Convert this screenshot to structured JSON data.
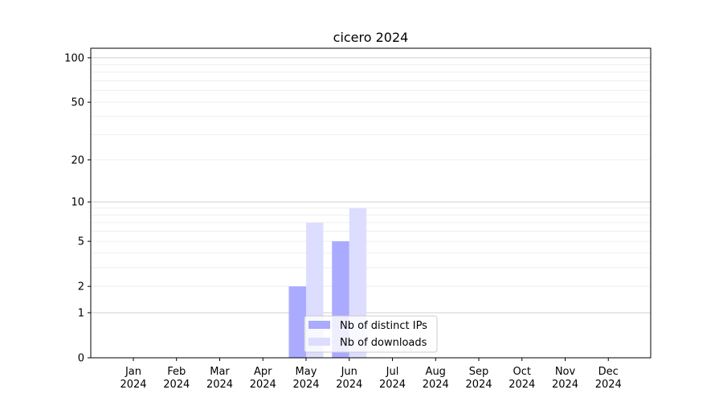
{
  "chart_data": {
    "type": "bar",
    "title": "cicero 2024",
    "xlabel": "",
    "ylabel": "",
    "yscale": "symlog",
    "ylim": [
      0,
      116
    ],
    "yticks": [
      0,
      1,
      2,
      5,
      10,
      20,
      50,
      100
    ],
    "grid": true,
    "legend_position": "bottom-center",
    "categories": [
      "Jan\n2024",
      "Feb\n2024",
      "Mar\n2024",
      "Apr\n2024",
      "May\n2024",
      "Jun\n2024",
      "Jul\n2024",
      "Aug\n2024",
      "Sep\n2024",
      "Oct\n2024",
      "Nov\n2024",
      "Dec\n2024"
    ],
    "series": [
      {
        "name": "Nb of distinct IPs",
        "color": "#aaaaff",
        "values": [
          0,
          0,
          0,
          0,
          2,
          5,
          0,
          0,
          0,
          0,
          0,
          0
        ]
      },
      {
        "name": "Nb of downloads",
        "color": "#ddddff",
        "values": [
          0,
          0,
          0,
          0,
          7,
          9,
          0,
          0,
          0,
          0,
          0,
          0
        ]
      }
    ]
  }
}
